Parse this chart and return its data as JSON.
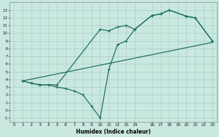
{
  "title": "",
  "xlabel": "Humidex (Indice chaleur)",
  "bg_color": "#c8e8e0",
  "grid_color": "#aaccc4",
  "line_color": "#1a6b60",
  "xlim": [
    -0.5,
    23.5
  ],
  "ylim": [
    -1.5,
    14.0
  ],
  "xticks": [
    0,
    1,
    2,
    3,
    4,
    5,
    6,
    7,
    8,
    9,
    10,
    11,
    12,
    13,
    14,
    16,
    17,
    18,
    19,
    20,
    21,
    22,
    23
  ],
  "yticks": [
    -1,
    0,
    1,
    2,
    3,
    4,
    5,
    6,
    7,
    8,
    9,
    10,
    11,
    12,
    13
  ],
  "line1_x": [
    1,
    2,
    3,
    4,
    5,
    10,
    11,
    12,
    13,
    14,
    16,
    17,
    18,
    20,
    21,
    23
  ],
  "line1_y": [
    3.8,
    3.5,
    3.3,
    3.3,
    3.3,
    10.5,
    10.3,
    10.8,
    11.0,
    10.5,
    12.3,
    12.5,
    13.0,
    12.2,
    12.0,
    9.0
  ],
  "line2_x": [
    1,
    2,
    3,
    4,
    5,
    6,
    7,
    8,
    9,
    10,
    11,
    12,
    13,
    14,
    16,
    17,
    18,
    20,
    21,
    23
  ],
  "line2_y": [
    3.8,
    3.5,
    3.3,
    3.3,
    3.0,
    2.8,
    2.5,
    2.0,
    0.5,
    -1.0,
    5.3,
    8.5,
    9.0,
    10.5,
    12.3,
    12.5,
    13.0,
    12.2,
    12.0,
    9.0
  ],
  "line3_x": [
    1,
    23
  ],
  "line3_y": [
    3.8,
    8.8
  ],
  "marker": "+",
  "markersize": 3,
  "linewidth": 0.9
}
